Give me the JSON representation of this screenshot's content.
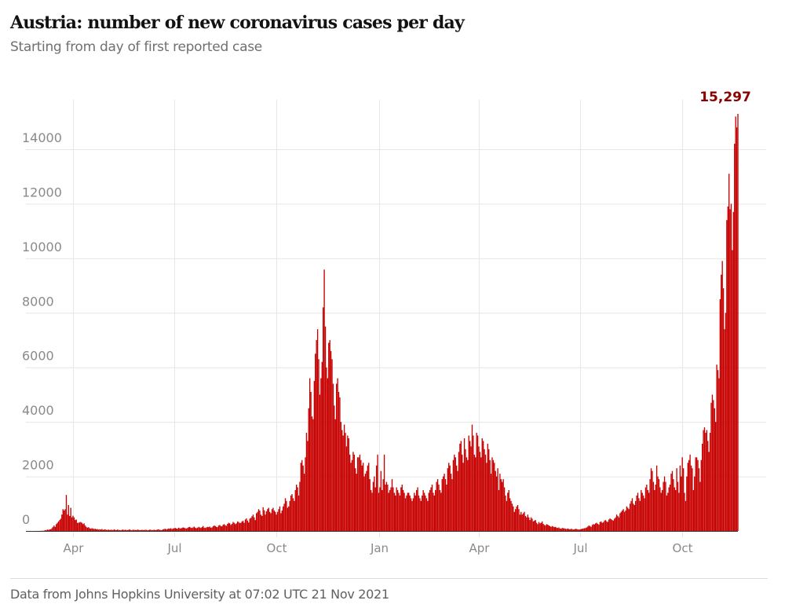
{
  "chart_data": {
    "type": "bar",
    "title": "Austria: number of new coronavirus cases per day",
    "subtitle": "Starting from day of first reported case",
    "xlabel": "",
    "ylabel": "",
    "ylim": [
      0,
      15800
    ],
    "y_ticks": [
      "0",
      "2000",
      "4000",
      "6000",
      "8000",
      "10000",
      "12000",
      "14000"
    ],
    "x_ticks": [
      {
        "label": "Apr",
        "date": "2020-04-01"
      },
      {
        "label": "Jul",
        "date": "2020-07-01"
      },
      {
        "label": "Oct",
        "date": "2020-10-01"
      },
      {
        "label": "Jan",
        "date": "2021-01-01"
      },
      {
        "label": "Apr",
        "date": "2021-04-01"
      },
      {
        "label": "Jul",
        "date": "2021-07-01"
      },
      {
        "label": "Oct",
        "date": "2021-10-01"
      }
    ],
    "grid": true,
    "bar_color": "#c70000",
    "annotation": {
      "label": "15,297",
      "value": 15297,
      "color": "#8b0000"
    },
    "months": [
      {
        "month": "2020-02",
        "first_day": 25,
        "values": [
          2,
          0,
          1,
          2,
          2
        ]
      },
      {
        "month": "2020-03",
        "first_day": 1,
        "values": [
          1,
          4,
          3,
          8,
          6,
          10,
          30,
          25,
          50,
          40,
          56,
          60,
          100,
          150,
          200,
          150,
          250,
          300,
          350,
          400,
          450,
          600,
          800,
          750,
          800,
          1321,
          600,
          950,
          550,
          850,
          500
        ]
      },
      {
        "month": "2020-04",
        "first_day": 1,
        "values": [
          560,
          500,
          400,
          420,
          300,
          300,
          320,
          330,
          300,
          250,
          280,
          200,
          150,
          120,
          140,
          100,
          80,
          100,
          90,
          70,
          80,
          60,
          70,
          50,
          60,
          50,
          70,
          40,
          50,
          60
        ]
      },
      {
        "month": "2020-05",
        "first_day": 1,
        "values": [
          40,
          35,
          50,
          30,
          45,
          40,
          30,
          60,
          40,
          30,
          50,
          40,
          30,
          25,
          40,
          50,
          30,
          45,
          35,
          30,
          40,
          60,
          30,
          25,
          45,
          40,
          35,
          30,
          50,
          40,
          30
        ]
      },
      {
        "month": "2020-06",
        "first_day": 1,
        "values": [
          30,
          40,
          35,
          30,
          45,
          40,
          25,
          30,
          50,
          40,
          30,
          35,
          45,
          30,
          40,
          50,
          60,
          40,
          35,
          30,
          60,
          70,
          80,
          60,
          70,
          90,
          80,
          100,
          70,
          90
        ]
      },
      {
        "month": "2020-07",
        "first_day": 1,
        "values": [
          100,
          110,
          90,
          80,
          120,
          100,
          90,
          110,
          130,
          120,
          100,
          90,
          110,
          140,
          150,
          120,
          110,
          130,
          160,
          120,
          100,
          120,
          150,
          130,
          110,
          140,
          180,
          120,
          110,
          130,
          150
        ]
      },
      {
        "month": "2020-08",
        "first_day": 1,
        "values": [
          140,
          160,
          120,
          130,
          170,
          200,
          180,
          150,
          140,
          200,
          220,
          180,
          170,
          230,
          250,
          210,
          190,
          260,
          300,
          280,
          220,
          260,
          330,
          300,
          250,
          280,
          350,
          330,
          290,
          300,
          350
        ]
      },
      {
        "month": "2020-09",
        "first_day": 1,
        "values": [
          370,
          300,
          420,
          460,
          380,
          310,
          450,
          480,
          540,
          600,
          500,
          400,
          650,
          700,
          800,
          750,
          600,
          550,
          870,
          760,
          600,
          720,
          800,
          850,
          700,
          650,
          800,
          850,
          750,
          700
        ]
      },
      {
        "month": "2020-10",
        "first_day": 1,
        "values": [
          600,
          700,
          800,
          900,
          650,
          750,
          900,
          1000,
          1200,
          1100,
          850,
          900,
          1100,
          1300,
          1350,
          1200,
          1100,
          1500,
          1700,
          1600,
          1300,
          1800,
          2500,
          2600,
          2400,
          2100,
          2700,
          3600,
          3300,
          4500,
          5600
        ]
      },
      {
        "month": "2020-11",
        "first_day": 1,
        "values": [
          5100,
          4200,
          4100,
          5500,
          6500,
          7000,
          7400,
          6300,
          5000,
          5600,
          6200,
          8200,
          9586,
          7500,
          6000,
          5600,
          6900,
          7000,
          6600,
          6300,
          5400,
          4600,
          4100,
          5400,
          5600,
          5100,
          4900,
          4000,
          3700,
          3500
        ]
      },
      {
        "month": "2020-12",
        "first_day": 1,
        "values": [
          3900,
          3600,
          3100,
          3500,
          3400,
          2800,
          2500,
          2600,
          2900,
          2800,
          2300,
          2100,
          2700,
          2700,
          2800,
          2600,
          2400,
          2500,
          2000,
          2100,
          2200,
          2400,
          2500,
          1900,
          1500,
          1400,
          1800,
          2000,
          1600,
          2400,
          2800
        ]
      },
      {
        "month": "2021-01",
        "first_day": 1,
        "values": [
          1400,
          1600,
          2200,
          1500,
          1900,
          2800,
          1700,
          1800,
          1700,
          1400,
          1500,
          1600,
          1900,
          1600,
          1400,
          1300,
          1600,
          1500,
          1400,
          1300,
          1600,
          1700,
          1500,
          1400,
          1200,
          1300,
          1400,
          1400,
          1300,
          1200,
          1100
        ]
      },
      {
        "month": "2021-02",
        "first_day": 1,
        "values": [
          1200,
          1400,
          1300,
          1500,
          1600,
          1300,
          1200,
          1100,
          1300,
          1500,
          1400,
          1300,
          1200,
          1100,
          1400,
          1500,
          1600,
          1700,
          1400,
          1300,
          1500,
          1800,
          1900,
          1700,
          1500,
          1400,
          1900,
          2000
        ]
      },
      {
        "month": "2021-03",
        "first_day": 1,
        "values": [
          2100,
          1900,
          1700,
          2300,
          2500,
          2400,
          2100,
          1900,
          2600,
          2800,
          2700,
          2400,
          2200,
          2900,
          3200,
          3300,
          2800,
          2500,
          3400,
          3000,
          2700,
          2600,
          3500,
          3300,
          3100,
          3900,
          3500,
          2800,
          2700,
          3600,
          3500
        ]
      },
      {
        "month": "2021-04",
        "first_day": 1,
        "values": [
          3100,
          2900,
          2700,
          3400,
          3300,
          3000,
          2800,
          2500,
          3200,
          3000,
          2600,
          2100,
          2700,
          2600,
          2500,
          2200,
          2000,
          2300,
          1500,
          2100,
          1900,
          1800,
          1900,
          1600,
          1300,
          1100,
          1400,
          1500,
          1200,
          1100
        ]
      },
      {
        "month": "2021-05",
        "first_day": 1,
        "values": [
          1000,
          900,
          700,
          800,
          900,
          950,
          800,
          600,
          700,
          600,
          650,
          700,
          550,
          500,
          600,
          500,
          400,
          500,
          450,
          350,
          380,
          400,
          300,
          250,
          330,
          280,
          300,
          350,
          260,
          220,
          200
        ]
      },
      {
        "month": "2021-06",
        "first_day": 1,
        "values": [
          250,
          230,
          200,
          180,
          150,
          180,
          160,
          140,
          150,
          120,
          110,
          130,
          90,
          80,
          110,
          100,
          95,
          80,
          70,
          90,
          70,
          60,
          80,
          70,
          50,
          60,
          80,
          70,
          60,
          50
        ]
      },
      {
        "month": "2021-07",
        "first_day": 1,
        "values": [
          60,
          70,
          80,
          90,
          100,
          110,
          130,
          160,
          200,
          180,
          150,
          220,
          250,
          240,
          280,
          300,
          260,
          230,
          330,
          350,
          300,
          320,
          380,
          400,
          350,
          330,
          420,
          460,
          430,
          400,
          380
        ]
      },
      {
        "month": "2021-08",
        "first_day": 1,
        "values": [
          450,
          500,
          600,
          550,
          500,
          650,
          700,
          750,
          800,
          700,
          750,
          900,
          850,
          800,
          1000,
          1100,
          1200,
          1000,
          950,
          1100,
          1300,
          1400,
          1200,
          1100,
          1500,
          1400,
          1300,
          1200,
          1600,
          1700,
          1500
        ]
      },
      {
        "month": "2021-09",
        "first_day": 1,
        "values": [
          1400,
          1900,
          2300,
          2200,
          1800,
          1500,
          1700,
          2400,
          2000,
          1900,
          1600,
          1400,
          1500,
          1800,
          2000,
          1800,
          1300,
          1400,
          1600,
          1700,
          2100,
          2200,
          1900,
          1600,
          1500,
          2300,
          1800,
          1400,
          2400,
          2000
        ]
      },
      {
        "month": "2021-10",
        "first_day": 1,
        "values": [
          2700,
          2300,
          1400,
          1100,
          2000,
          2500,
          2600,
          2800,
          2400,
          2300,
          1500,
          2000,
          2700,
          2700,
          2600,
          2300,
          1800,
          2600,
          3200,
          3700,
          3800,
          3600,
          3700,
          3300,
          2900,
          3600,
          4700,
          5000,
          4800,
          4500,
          4000
        ]
      },
      {
        "month": "2021-11",
        "first_day": 1,
        "values": [
          6100,
          5900,
          5600,
          8500,
          9400,
          9900,
          8900,
          7400,
          8000,
          11400,
          11900,
          13100,
          11800,
          12000,
          10300,
          11700,
          14200,
          15200,
          14800,
          15297
        ]
      }
    ]
  },
  "footer": {
    "source": "Data from Johns Hopkins University at 07:02 UTC 21 Nov 2021"
  }
}
